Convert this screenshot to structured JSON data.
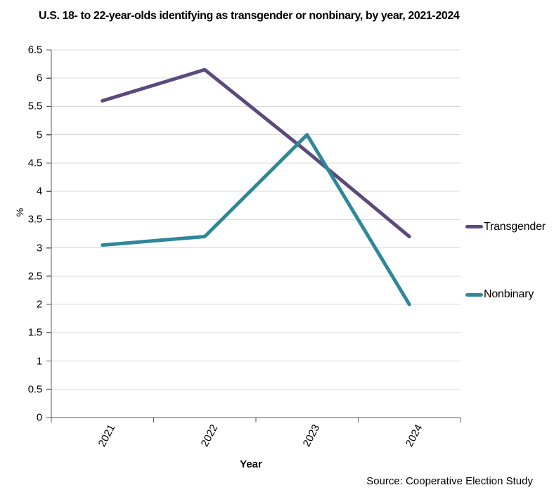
{
  "source_note": "Source: Cooperative Election Study",
  "chart_data": {
    "type": "line",
    "title": "U.S. 18- to 22-year-olds identifying as transgender or nonbinary, by year, 2021-2024",
    "categories": [
      "2021",
      "2022",
      "2023",
      "2024"
    ],
    "series": [
      {
        "name": "Transgender",
        "color": "#5b4a7d",
        "values": [
          5.6,
          6.15,
          4.7,
          3.2
        ]
      },
      {
        "name": "Nonbinary",
        "color": "#2f879a",
        "values": [
          3.05,
          3.2,
          5.0,
          2.0
        ]
      }
    ],
    "xlabel": "Year",
    "ylabel": "%",
    "ylim": [
      0,
      6.5
    ],
    "ytick_step": 0.5,
    "ytick_labels": [
      "0",
      "0.5",
      "1",
      "1.5",
      "2",
      "2.5",
      "3",
      "3.5",
      "4",
      "4.5",
      "5",
      "5.5",
      "6",
      "6.5"
    ],
    "grid": true,
    "legend_position": "right",
    "colors": {
      "gridline": "#d9d9d9",
      "axis": "#595959",
      "text": "#000000",
      "background": "#ffffff"
    }
  }
}
